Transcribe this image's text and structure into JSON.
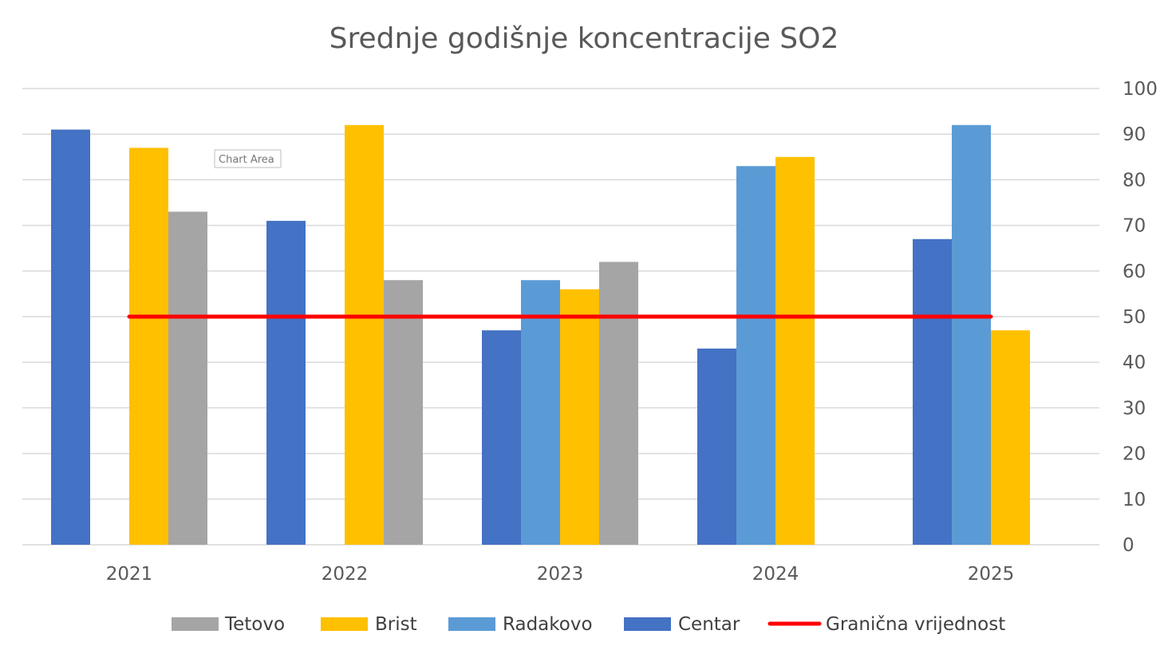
{
  "chart_data": {
    "type": "bar",
    "title": "Srednje godišnje koncentracije SO2",
    "categories": [
      "2021",
      "2022",
      "2023",
      "2024",
      "2025"
    ],
    "series": [
      {
        "name": "Centar",
        "color": "#4472C4",
        "values": [
          91,
          71,
          47,
          43,
          67
        ]
      },
      {
        "name": "Radakovo",
        "color": "#5B9BD5",
        "values": [
          null,
          null,
          58,
          83,
          92
        ]
      },
      {
        "name": "Brist",
        "color": "#FFC000",
        "values": [
          87,
          92,
          56,
          85,
          47
        ]
      },
      {
        "name": "Tetovo",
        "color": "#A5A5A5",
        "values": [
          73,
          58,
          62,
          null,
          null
        ]
      }
    ],
    "limit_line": {
      "name": "Granična vrijednost",
      "color": "#FF0000",
      "value": 50
    },
    "y_axis": {
      "position": "right",
      "ylim": [
        0,
        100
      ],
      "ticks": [
        "0",
        "10",
        "20",
        "30",
        "40",
        "50",
        "60",
        "70",
        "80",
        "90",
        "100"
      ]
    },
    "legend": {
      "position": "bottom",
      "order": [
        "Tetovo",
        "Brist",
        "Radakovo",
        "Centar",
        "Granična vrijednost"
      ]
    },
    "grid": true
  },
  "tooltip": {
    "label": "Chart Area"
  }
}
